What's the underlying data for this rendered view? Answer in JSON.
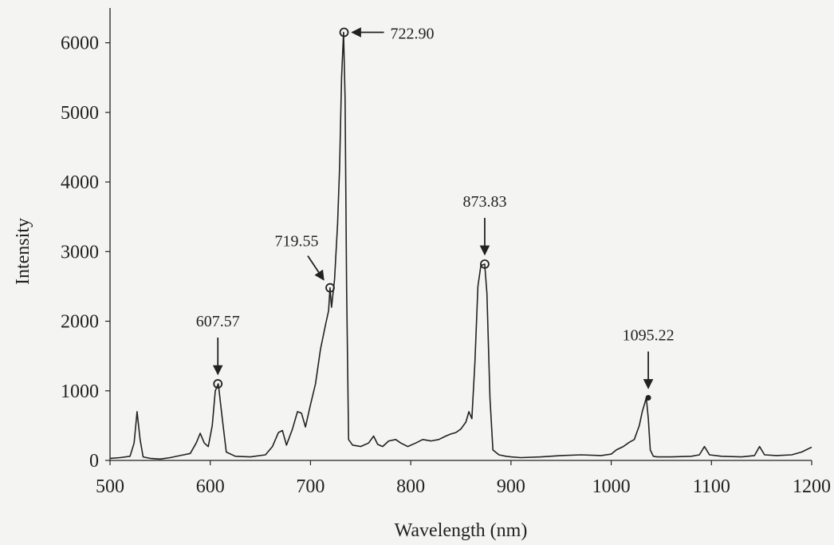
{
  "chart_data": {
    "type": "line",
    "title": "",
    "xlabel": "Wavelength (nm)",
    "ylabel": "Intensity",
    "xlim": [
      500,
      1200
    ],
    "ylim": [
      0,
      6500
    ],
    "x_ticks": [
      "500",
      "600",
      "700",
      "800",
      "900",
      "1000",
      "1100",
      "1200"
    ],
    "y_ticks": [
      "0",
      "1000",
      "2000",
      "3000",
      "4000",
      "5000",
      "6000"
    ],
    "grid": false,
    "legend": "none",
    "series": [
      {
        "x": [
          500,
          510,
          520,
          524,
          527,
          530,
          533,
          540,
          550,
          560,
          570,
          580,
          586,
          590,
          594,
          598,
          602,
          605,
          608,
          612,
          616,
          625,
          640,
          655,
          662,
          668,
          672,
          676,
          682,
          687,
          691,
          695,
          700,
          705,
          710,
          715,
          718,
          719.5,
          721,
          724,
          727,
          729,
          731,
          733,
          734.5,
          736,
          738,
          742,
          750,
          758,
          763,
          767,
          772,
          778,
          785,
          790,
          797,
          805,
          812,
          820,
          828,
          835,
          840,
          845,
          850,
          855,
          858,
          861,
          864,
          867,
          870,
          873.8,
          876,
          879,
          882,
          888,
          895,
          900,
          910,
          930,
          950,
          970,
          990,
          1000,
          1005,
          1012,
          1018,
          1023,
          1028,
          1031,
          1033,
          1035,
          1037,
          1039,
          1042,
          1046,
          1060,
          1080,
          1088,
          1093,
          1098,
          1110,
          1130,
          1143,
          1148,
          1153,
          1165,
          1180,
          1190,
          1200
        ],
        "y": [
          30,
          40,
          60,
          250,
          700,
          300,
          50,
          30,
          20,
          40,
          70,
          100,
          250,
          390,
          250,
          200,
          500,
          1000,
          1100,
          600,
          120,
          60,
          50,
          80,
          200,
          400,
          430,
          220,
          450,
          700,
          680,
          480,
          800,
          1100,
          1600,
          1950,
          2150,
          2480,
          2200,
          2600,
          3400,
          4200,
          5500,
          6150,
          5200,
          2500,
          300,
          220,
          200,
          250,
          350,
          230,
          200,
          280,
          300,
          250,
          200,
          250,
          300,
          280,
          300,
          350,
          380,
          400,
          450,
          550,
          700,
          600,
          1400,
          2500,
          2800,
          2820,
          2400,
          900,
          150,
          80,
          60,
          50,
          40,
          50,
          70,
          80,
          70,
          90,
          150,
          200,
          260,
          300,
          500,
          700,
          800,
          900,
          600,
          150,
          60,
          50,
          50,
          60,
          80,
          200,
          80,
          60,
          50,
          70,
          200,
          80,
          70,
          80,
          120,
          190
        ]
      }
    ],
    "annotations": [
      {
        "label": "607.57",
        "x": 607.57,
        "y": 1100,
        "marker": "circle",
        "arrow": "down"
      },
      {
        "label": "719.55",
        "x": 719.55,
        "y": 2480,
        "marker": "circle",
        "arrow": "down-right"
      },
      {
        "label": "722.90",
        "x": 733.5,
        "y": 6150,
        "marker": "circle",
        "arrow": "left"
      },
      {
        "label": "873.83",
        "x": 873.83,
        "y": 2820,
        "marker": "circle",
        "arrow": "down"
      },
      {
        "label": "1095.22",
        "x": 1037,
        "y": 900,
        "marker": "dot",
        "arrow": "down"
      }
    ],
    "colors": {
      "line": "#222222",
      "background": "#f4f4f2"
    }
  }
}
